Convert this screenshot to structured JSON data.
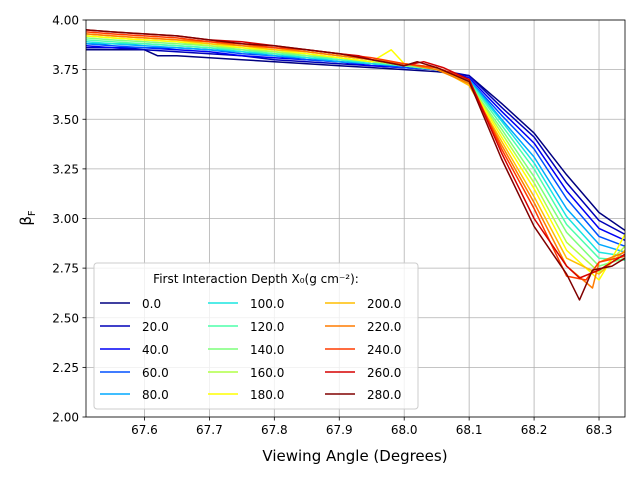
{
  "chart_data": {
    "type": "line",
    "title": "",
    "xlabel": "Viewing Angle (Degrees)",
    "ylabel_main": "β",
    "ylabel_sub": "F",
    "xlim": [
      67.51,
      68.34
    ],
    "ylim": [
      2.0,
      4.0
    ],
    "xticks": [
      "67.6",
      "67.7",
      "67.8",
      "67.9",
      "68.0",
      "68.1",
      "68.2",
      "68.3"
    ],
    "yticks": [
      "2.00",
      "2.25",
      "2.50",
      "2.75",
      "3.00",
      "3.25",
      "3.50",
      "3.75",
      "4.00"
    ],
    "grid": true,
    "legend": {
      "title": "First Interaction Depth X₀(g cm⁻²):",
      "location": "lower-left",
      "columns": 3
    },
    "series": [
      {
        "name": "0.0",
        "color": "#000080",
        "x": [
          67.51,
          67.55,
          67.6,
          67.62,
          67.65,
          67.7,
          67.75,
          67.8,
          67.85,
          67.9,
          67.95,
          68.0,
          68.05,
          68.1,
          68.15,
          68.2,
          68.25,
          68.3,
          68.34
        ],
        "y": [
          3.85,
          3.85,
          3.85,
          3.82,
          3.82,
          3.81,
          3.8,
          3.79,
          3.78,
          3.77,
          3.76,
          3.75,
          3.74,
          3.72,
          3.58,
          3.43,
          3.22,
          3.03,
          2.94
        ]
      },
      {
        "name": "20.0",
        "color": "#0000b8",
        "x": [
          67.51,
          67.55,
          67.6,
          67.65,
          67.7,
          67.75,
          67.8,
          67.85,
          67.9,
          67.95,
          68.0,
          68.05,
          68.1,
          68.15,
          68.2,
          68.25,
          68.3,
          68.34
        ],
        "y": [
          3.86,
          3.86,
          3.85,
          3.84,
          3.83,
          3.82,
          3.8,
          3.79,
          3.78,
          3.77,
          3.76,
          3.75,
          3.72,
          3.56,
          3.41,
          3.18,
          2.99,
          2.92
        ]
      },
      {
        "name": "40.0",
        "color": "#0000f5",
        "x": [
          67.51,
          67.55,
          67.6,
          67.65,
          67.7,
          67.75,
          67.8,
          67.85,
          67.9,
          67.95,
          68.0,
          68.05,
          68.1,
          68.15,
          68.2,
          68.25,
          68.3,
          68.34
        ],
        "y": [
          3.87,
          3.86,
          3.86,
          3.85,
          3.84,
          3.82,
          3.81,
          3.8,
          3.79,
          3.77,
          3.76,
          3.75,
          3.71,
          3.54,
          3.38,
          3.14,
          2.95,
          2.89
        ]
      },
      {
        "name": "60.0",
        "color": "#0050ff",
        "x": [
          67.51,
          67.55,
          67.6,
          67.65,
          67.7,
          67.75,
          67.8,
          67.85,
          67.9,
          67.95,
          68.0,
          68.05,
          68.1,
          68.15,
          68.2,
          68.25,
          68.3,
          68.34
        ],
        "y": [
          3.88,
          3.87,
          3.86,
          3.86,
          3.85,
          3.83,
          3.82,
          3.8,
          3.79,
          3.78,
          3.76,
          3.75,
          3.7,
          3.52,
          3.35,
          3.1,
          2.91,
          2.86
        ]
      },
      {
        "name": "80.0",
        "color": "#00a8ff",
        "x": [
          67.51,
          67.55,
          67.6,
          67.65,
          67.7,
          67.75,
          67.8,
          67.85,
          67.9,
          67.95,
          68.0,
          68.05,
          68.1,
          68.15,
          68.2,
          68.25,
          68.3,
          68.34
        ],
        "y": [
          3.88,
          3.88,
          3.87,
          3.86,
          3.85,
          3.84,
          3.82,
          3.81,
          3.79,
          3.78,
          3.77,
          3.75,
          3.7,
          3.5,
          3.31,
          3.05,
          2.87,
          2.83
        ]
      },
      {
        "name": "100.0",
        "color": "#1ae5e0",
        "x": [
          67.51,
          67.55,
          67.6,
          67.65,
          67.7,
          67.75,
          67.8,
          67.85,
          67.9,
          67.95,
          68.0,
          68.05,
          68.1,
          68.15,
          68.2,
          68.25,
          68.3,
          68.34
        ],
        "y": [
          3.89,
          3.88,
          3.88,
          3.87,
          3.86,
          3.84,
          3.83,
          3.81,
          3.8,
          3.78,
          3.77,
          3.75,
          3.69,
          3.49,
          3.28,
          3.01,
          2.83,
          2.81
        ]
      },
      {
        "name": "120.0",
        "color": "#4dffaa",
        "x": [
          67.51,
          67.55,
          67.6,
          67.65,
          67.7,
          67.75,
          67.8,
          67.85,
          67.9,
          67.95,
          68.0,
          68.05,
          68.1,
          68.15,
          68.2,
          68.25,
          68.3,
          68.34
        ],
        "y": [
          3.9,
          3.89,
          3.88,
          3.87,
          3.86,
          3.85,
          3.83,
          3.82,
          3.8,
          3.79,
          3.77,
          3.75,
          3.69,
          3.47,
          3.25,
          2.97,
          2.8,
          2.79
        ]
      },
      {
        "name": "140.0",
        "color": "#7dff7a",
        "x": [
          67.51,
          67.55,
          67.6,
          67.65,
          67.7,
          67.75,
          67.8,
          67.85,
          67.9,
          67.95,
          68.0,
          68.05,
          68.1,
          68.15,
          68.2,
          68.25,
          68.3,
          68.34
        ],
        "y": [
          3.91,
          3.9,
          3.89,
          3.88,
          3.87,
          3.85,
          3.84,
          3.82,
          3.81,
          3.79,
          3.77,
          3.75,
          3.68,
          3.45,
          3.21,
          2.93,
          2.76,
          2.8
        ]
      },
      {
        "name": "160.0",
        "color": "#b0ff47",
        "x": [
          67.51,
          67.55,
          67.6,
          67.65,
          67.7,
          67.75,
          67.8,
          67.85,
          67.9,
          67.95,
          68.0,
          68.05,
          68.1,
          68.15,
          68.2,
          68.25,
          68.3,
          68.34
        ],
        "y": [
          3.92,
          3.91,
          3.9,
          3.89,
          3.87,
          3.86,
          3.84,
          3.83,
          3.81,
          3.79,
          3.78,
          3.76,
          3.68,
          3.43,
          3.18,
          2.88,
          2.73,
          2.86
        ]
      },
      {
        "name": "180.0",
        "color": "#ffff00",
        "x": [
          67.51,
          67.55,
          67.6,
          67.65,
          67.7,
          67.75,
          67.8,
          67.85,
          67.9,
          67.95,
          67.98,
          68.0,
          68.05,
          68.1,
          68.15,
          68.2,
          68.25,
          68.28,
          68.3,
          68.32,
          68.34
        ],
        "y": [
          3.92,
          3.91,
          3.9,
          3.89,
          3.88,
          3.86,
          3.85,
          3.83,
          3.81,
          3.79,
          3.85,
          3.78,
          3.76,
          3.68,
          3.41,
          3.15,
          2.84,
          2.75,
          2.69,
          2.8,
          2.92
        ]
      },
      {
        "name": "200.0",
        "color": "#ffbd00",
        "x": [
          67.51,
          67.55,
          67.6,
          67.65,
          67.7,
          67.75,
          67.8,
          67.85,
          67.9,
          67.95,
          68.0,
          68.05,
          68.1,
          68.15,
          68.2,
          68.25,
          68.3,
          68.34
        ],
        "y": [
          3.93,
          3.92,
          3.91,
          3.9,
          3.88,
          3.87,
          3.85,
          3.84,
          3.82,
          3.8,
          3.78,
          3.76,
          3.67,
          3.39,
          3.11,
          2.8,
          2.72,
          2.84
        ]
      },
      {
        "name": "220.0",
        "color": "#ff7b00",
        "x": [
          67.51,
          67.55,
          67.6,
          67.65,
          67.7,
          67.75,
          67.8,
          67.85,
          67.9,
          67.95,
          68.0,
          68.05,
          68.1,
          68.15,
          68.2,
          68.25,
          68.29,
          68.3,
          68.34
        ],
        "y": [
          3.93,
          3.92,
          3.91,
          3.9,
          3.89,
          3.87,
          3.86,
          3.84,
          3.82,
          3.8,
          3.78,
          3.75,
          3.68,
          3.37,
          3.08,
          2.76,
          2.65,
          2.78,
          2.83
        ]
      },
      {
        "name": "240.0",
        "color": "#ff3b00",
        "x": [
          67.51,
          67.55,
          67.6,
          67.65,
          67.7,
          67.75,
          67.8,
          67.85,
          67.9,
          67.95,
          68.0,
          68.05,
          68.1,
          68.15,
          68.2,
          68.25,
          68.28,
          68.3,
          68.34
        ],
        "y": [
          3.94,
          3.93,
          3.92,
          3.91,
          3.89,
          3.88,
          3.86,
          3.85,
          3.83,
          3.81,
          3.78,
          3.76,
          3.7,
          3.35,
          3.05,
          2.71,
          2.69,
          2.78,
          2.81
        ]
      },
      {
        "name": "260.0",
        "color": "#d50000",
        "x": [
          67.51,
          67.55,
          67.6,
          67.65,
          67.7,
          67.75,
          67.8,
          67.85,
          67.9,
          67.93,
          67.95,
          68.0,
          68.03,
          68.06,
          68.1,
          68.15,
          68.2,
          68.25,
          68.27,
          68.3,
          68.34
        ],
        "y": [
          3.95,
          3.94,
          3.93,
          3.92,
          3.9,
          3.89,
          3.87,
          3.85,
          3.83,
          3.82,
          3.8,
          3.77,
          3.79,
          3.76,
          3.7,
          3.33,
          3.0,
          2.76,
          2.7,
          2.74,
          2.82
        ]
      },
      {
        "name": "280.0",
        "color": "#800000",
        "x": [
          67.51,
          67.55,
          67.6,
          67.65,
          67.7,
          67.75,
          67.8,
          67.85,
          67.9,
          67.95,
          68.0,
          68.02,
          68.05,
          68.1,
          68.15,
          68.2,
          68.25,
          68.27,
          68.29,
          68.32,
          68.34
        ],
        "y": [
          3.95,
          3.94,
          3.93,
          3.92,
          3.9,
          3.88,
          3.87,
          3.85,
          3.83,
          3.8,
          3.77,
          3.79,
          3.76,
          3.69,
          3.3,
          2.96,
          2.72,
          2.59,
          2.74,
          2.76,
          2.8
        ]
      }
    ]
  }
}
